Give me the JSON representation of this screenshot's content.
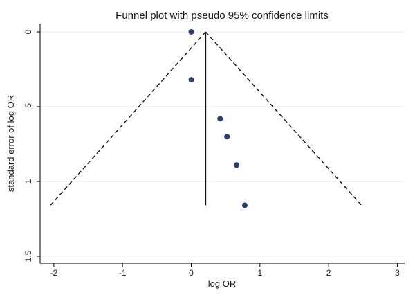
{
  "chart_data": {
    "type": "scatter",
    "title": "Funnel plot with pseudo 95% confidence limits",
    "xlabel": "log OR",
    "ylabel": "standard error of log OR",
    "xlim": [
      -2.2,
      3.0
    ],
    "ylim": [
      1.5,
      0.0
    ],
    "y_reversed": true,
    "x_ticks": [
      -2,
      -1,
      0,
      1,
      2,
      3
    ],
    "x_tick_labels": [
      "-2",
      "-1",
      "0",
      "1",
      "2",
      "3"
    ],
    "y_ticks": [
      0,
      0.5,
      1,
      1.5
    ],
    "y_tick_labels": [
      "0",
      ".5",
      "1",
      "1.5"
    ],
    "grid": "horizontal",
    "legend": "none",
    "pooled_estimate": 0.21,
    "pseudo_ci": {
      "apex": [
        0.21,
        0.0
      ],
      "lower_end": [
        -2.05,
        1.16
      ],
      "upper_end": [
        2.48,
        1.16
      ],
      "style": "dashed"
    },
    "reference_line": {
      "x": 0.21,
      "y_from": 0.0,
      "y_to": 1.16
    },
    "points": [
      {
        "x": 0.0,
        "y": 0.0
      },
      {
        "x": 0.0,
        "y": 0.32
      },
      {
        "x": 0.42,
        "y": 0.58
      },
      {
        "x": 0.52,
        "y": 0.7
      },
      {
        "x": 0.66,
        "y": 0.89
      },
      {
        "x": 0.78,
        "y": 1.16
      }
    ],
    "colors": {
      "point": "#2f3f6b",
      "line": "#111111",
      "grid": "#e6ecef",
      "frame": "#000000",
      "background": "#ffffff"
    }
  }
}
